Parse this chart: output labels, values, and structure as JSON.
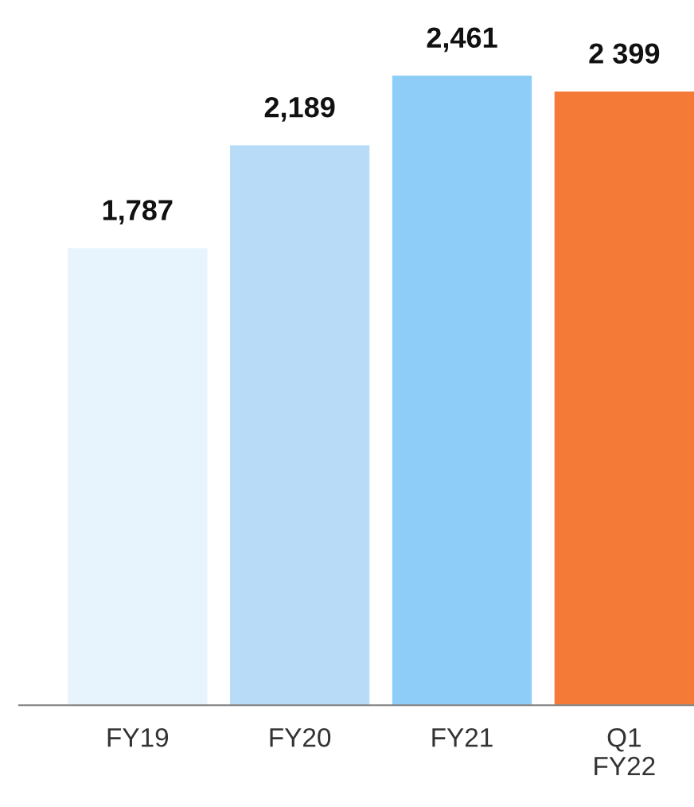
{
  "chart_data": {
    "type": "bar",
    "categories": [
      "FY19",
      "FY20",
      "FY21",
      "Q1\nFY22"
    ],
    "values": [
      1787,
      2189,
      2461,
      2399
    ],
    "colors": [
      "#e8f4fd",
      "#b8dcf8",
      "#8ecdf8",
      "#f47a38"
    ],
    "value_labels": [
      "1,787",
      "2,189",
      "2,461",
      "2 399"
    ],
    "grid": false,
    "legend": false
  }
}
